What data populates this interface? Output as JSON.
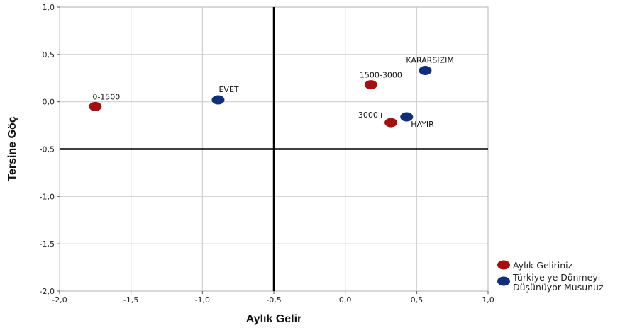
{
  "chart_data": {
    "type": "scatter",
    "xlabel": "Aylık Gelir",
    "ylabel": "Tersine Göç",
    "xlim": [
      -2.0,
      1.0
    ],
    "ylim": [
      -2.0,
      1.0
    ],
    "x_ticks": [
      "-2,0",
      "-1,5",
      "-1,0",
      "-0,5",
      "0,0",
      "0,5",
      "1,0"
    ],
    "y_ticks": [
      "1,0",
      "0,5",
      "0,0",
      "-0,5",
      "-1,0",
      "-1,5",
      "-2,0"
    ],
    "x_tick_values": [
      -2.0,
      -1.5,
      -1.0,
      -0.5,
      0.0,
      0.5,
      1.0
    ],
    "y_tick_values": [
      1.0,
      0.5,
      0.0,
      -0.5,
      -1.0,
      -1.5,
      -2.0
    ],
    "reference_lines": {
      "x": -0.5,
      "y": -0.5
    },
    "grid": true,
    "legend_position": "bottom-right",
    "series": [
      {
        "name": "Aylık Geliriniz",
        "color": "#a50f0f",
        "points": [
          {
            "label": "0-1500",
            "x": -1.75,
            "y": -0.05
          },
          {
            "label": "1500-3000",
            "x": 0.18,
            "y": 0.18
          },
          {
            "label": "3000+",
            "x": 0.32,
            "y": -0.22
          }
        ]
      },
      {
        "name": "Türkiye'ye Dönmeyi Düşünüyor Musunuz",
        "name_lines": [
          "Türkiye'ye Dönmeyi",
          "Düşünüyor Musunuz"
        ],
        "color": "#0f2f7a",
        "points": [
          {
            "label": "EVET",
            "x": -0.89,
            "y": 0.02
          },
          {
            "label": "KARARSIZIM",
            "x": 0.56,
            "y": 0.33
          },
          {
            "label": "HAYIR",
            "x": 0.43,
            "y": -0.16
          }
        ]
      }
    ]
  }
}
